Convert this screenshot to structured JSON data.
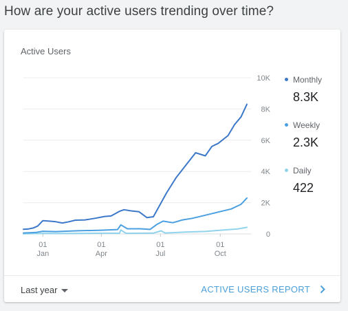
{
  "page": {
    "title": "How are your active users trending over time?"
  },
  "card": {
    "title": "Active Users",
    "footer": {
      "range_label": "Last year",
      "report_link": "ACTIVE USERS REPORT"
    }
  },
  "legend": {
    "items": [
      {
        "name": "Monthly",
        "value": "8.3K",
        "color": "#3b78c9"
      },
      {
        "name": "Weekly",
        "value": "2.3K",
        "color": "#4a9fe0"
      },
      {
        "name": "Daily",
        "value": "422",
        "color": "#8fd3ec"
      }
    ]
  },
  "chart_data": {
    "type": "line",
    "title": "Active Users",
    "ylim": [
      0,
      10000
    ],
    "y_ticks": [
      0,
      2000,
      4000,
      6000,
      8000,
      10000
    ],
    "y_tick_labels": [
      "0",
      "2K",
      "4K",
      "6K",
      "8K",
      "10K"
    ],
    "x_domain": [
      0,
      344
    ],
    "x_ticks": [
      {
        "day": 30,
        "label_top": "01",
        "label_bottom": "Jan"
      },
      {
        "day": 120,
        "label_top": "01",
        "label_bottom": "Apr"
      },
      {
        "day": 211,
        "label_top": "01",
        "label_bottom": "Jul"
      },
      {
        "day": 303,
        "label_top": "01",
        "label_bottom": "Oct"
      }
    ],
    "grid": true,
    "legend_position": "right",
    "series": [
      {
        "name": "Monthly",
        "color": "#3b78c9",
        "points": [
          [
            0,
            300
          ],
          [
            8,
            320
          ],
          [
            15,
            380
          ],
          [
            22,
            500
          ],
          [
            30,
            850
          ],
          [
            40,
            820
          ],
          [
            50,
            780
          ],
          [
            60,
            700
          ],
          [
            70,
            780
          ],
          [
            80,
            880
          ],
          [
            95,
            900
          ],
          [
            110,
            1000
          ],
          [
            125,
            1120
          ],
          [
            135,
            1150
          ],
          [
            148,
            1450
          ],
          [
            155,
            1550
          ],
          [
            165,
            1480
          ],
          [
            178,
            1420
          ],
          [
            190,
            1050
          ],
          [
            200,
            1100
          ],
          [
            210,
            1850
          ],
          [
            220,
            2600
          ],
          [
            235,
            3600
          ],
          [
            250,
            4400
          ],
          [
            265,
            5200
          ],
          [
            280,
            5000
          ],
          [
            290,
            5600
          ],
          [
            300,
            5800
          ],
          [
            315,
            6300
          ],
          [
            325,
            7000
          ],
          [
            335,
            7500
          ],
          [
            344,
            8300
          ]
        ]
      },
      {
        "name": "Weekly",
        "color": "#4a9fe0",
        "points": [
          [
            0,
            60
          ],
          [
            10,
            80
          ],
          [
            20,
            100
          ],
          [
            30,
            170
          ],
          [
            50,
            150
          ],
          [
            80,
            200
          ],
          [
            120,
            240
          ],
          [
            145,
            280
          ],
          [
            150,
            580
          ],
          [
            160,
            330
          ],
          [
            180,
            330
          ],
          [
            195,
            290
          ],
          [
            205,
            600
          ],
          [
            215,
            820
          ],
          [
            230,
            720
          ],
          [
            245,
            900
          ],
          [
            260,
            1000
          ],
          [
            280,
            1200
          ],
          [
            300,
            1400
          ],
          [
            320,
            1600
          ],
          [
            335,
            1900
          ],
          [
            344,
            2300
          ]
        ]
      },
      {
        "name": "Daily",
        "color": "#8fd3ec",
        "points": [
          [
            0,
            15
          ],
          [
            30,
            30
          ],
          [
            60,
            25
          ],
          [
            100,
            40
          ],
          [
            130,
            50
          ],
          [
            148,
            45
          ],
          [
            150,
            250
          ],
          [
            158,
            40
          ],
          [
            200,
            55
          ],
          [
            212,
            200
          ],
          [
            218,
            60
          ],
          [
            250,
            120
          ],
          [
            280,
            160
          ],
          [
            310,
            260
          ],
          [
            330,
            320
          ],
          [
            344,
            422
          ]
        ]
      }
    ]
  }
}
